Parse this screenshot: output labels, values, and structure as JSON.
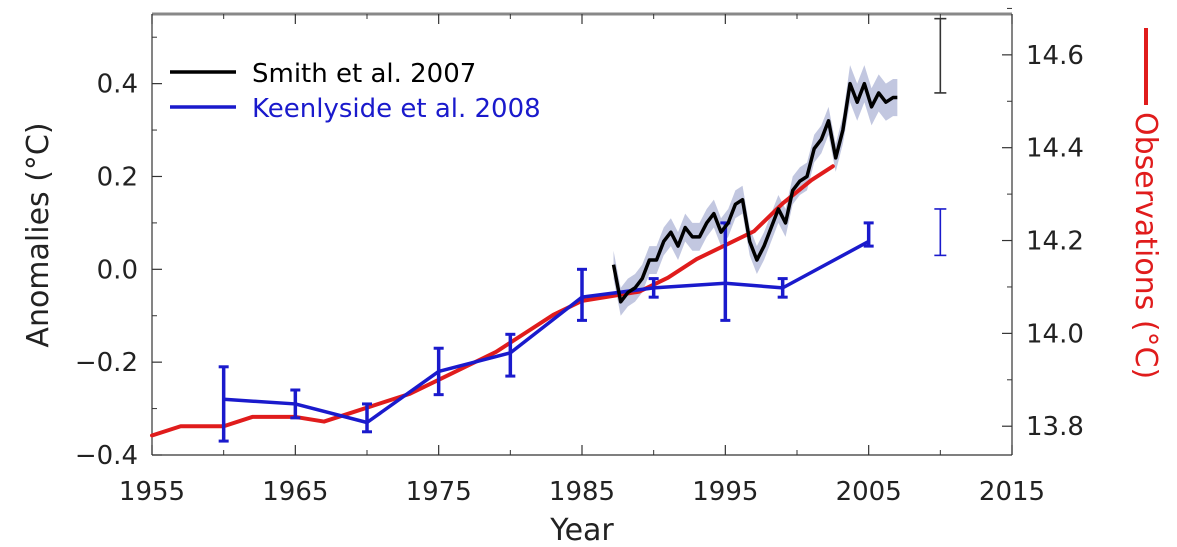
{
  "chart_data": {
    "type": "line",
    "xlabel": "Year",
    "ylabel": "Anomalies (°C)",
    "y2label": "Observations (°C)",
    "xlim": [
      1955,
      2015
    ],
    "ylim": [
      -0.4,
      0.55
    ],
    "y2lim": [
      13.738,
      14.688
    ],
    "x_ticks": [
      1955,
      1965,
      1975,
      1985,
      1995,
      2005,
      2015
    ],
    "y_ticks": [
      -0.4,
      -0.2,
      0.0,
      0.2,
      0.4
    ],
    "y_tick_labels": [
      "−0.4",
      "−0.2",
      "0.0",
      "0.2",
      "0.4"
    ],
    "y2_ticks": [
      13.8,
      14.0,
      14.2,
      14.4,
      14.6
    ],
    "y2_tick_labels": [
      "13.8",
      "14.0",
      "14.2",
      "14.4",
      "14.6"
    ],
    "grid": false,
    "legend_position": "top-left",
    "colors": {
      "smith": "#000000",
      "smith_band": "#aeb4d6",
      "keenlyside": "#1a1acc",
      "observations": "#e01c1c",
      "axis": "#333333"
    },
    "series": [
      {
        "name": "Smith et al. 2007",
        "axis": "left",
        "x": [
          1987.2,
          1987.7,
          1988.2,
          1988.7,
          1989.2,
          1989.7,
          1990.2,
          1990.7,
          1991.2,
          1991.7,
          1992.2,
          1992.7,
          1993.2,
          1993.7,
          1994.2,
          1994.7,
          1995.2,
          1995.7,
          1996.2,
          1996.7,
          1997.2,
          1997.7,
          1998.2,
          1998.7,
          1999.2,
          1999.7,
          2000.2,
          2000.7,
          2001.2,
          2001.7,
          2002.2,
          2002.7,
          2003.2,
          2003.7,
          2004.2,
          2004.7,
          2005.2,
          2005.7,
          2006.2,
          2006.7,
          2007.0
        ],
        "y": [
          0.01,
          -0.07,
          -0.05,
          -0.04,
          -0.02,
          0.02,
          0.02,
          0.06,
          0.08,
          0.05,
          0.09,
          0.07,
          0.07,
          0.1,
          0.12,
          0.08,
          0.1,
          0.14,
          0.15,
          0.06,
          0.02,
          0.05,
          0.09,
          0.13,
          0.1,
          0.17,
          0.19,
          0.2,
          0.26,
          0.28,
          0.32,
          0.24,
          0.3,
          0.4,
          0.36,
          0.4,
          0.35,
          0.38,
          0.36,
          0.37,
          0.37
        ],
        "uncertainty": [
          0.03,
          0.03,
          0.03,
          0.03,
          0.03,
          0.03,
          0.03,
          0.03,
          0.03,
          0.03,
          0.03,
          0.03,
          0.03,
          0.03,
          0.03,
          0.03,
          0.03,
          0.03,
          0.03,
          0.03,
          0.03,
          0.03,
          0.03,
          0.03,
          0.03,
          0.03,
          0.03,
          0.03,
          0.03,
          0.03,
          0.03,
          0.03,
          0.03,
          0.04,
          0.04,
          0.04,
          0.04,
          0.04,
          0.04,
          0.04,
          0.04
        ]
      },
      {
        "name": "Keenlyside et al. 2008",
        "axis": "left",
        "x": [
          1960,
          1965,
          1970,
          1975,
          1980,
          1985,
          1990,
          1995,
          1999,
          2005
        ],
        "y": [
          -0.28,
          -0.29,
          -0.33,
          -0.22,
          -0.18,
          -0.06,
          -0.04,
          -0.03,
          -0.04,
          0.06
        ],
        "err_low": [
          -0.37,
          -0.32,
          -0.35,
          -0.27,
          -0.23,
          -0.11,
          -0.06,
          -0.11,
          -0.06,
          0.05
        ],
        "err_high": [
          -0.21,
          -0.26,
          -0.29,
          -0.17,
          -0.14,
          0.0,
          -0.02,
          0.1,
          -0.02,
          0.1
        ]
      },
      {
        "name": "Observations",
        "axis": "right",
        "x": [
          1955,
          1957,
          1958,
          1960,
          1962,
          1965,
          1967,
          1969,
          1971,
          1973,
          1975,
          1977,
          1979,
          1981,
          1983,
          1985,
          1987,
          1989,
          1991,
          1993,
          1995,
          1997,
          1999,
          2001,
          2002.5
        ],
        "y": [
          13.78,
          13.8,
          13.8,
          13.8,
          13.82,
          13.82,
          13.81,
          13.83,
          13.85,
          13.87,
          13.9,
          13.93,
          13.96,
          14.0,
          14.04,
          14.07,
          14.08,
          14.09,
          14.12,
          14.16,
          14.19,
          14.22,
          14.28,
          14.33,
          14.36
        ]
      }
    ],
    "error_bars_2010": [
      {
        "series": "Smith et al. 2007",
        "x": 2010,
        "low": 0.38,
        "high": 0.54
      },
      {
        "series": "Keenlyside et al. 2008",
        "x": 2010,
        "low": 0.03,
        "high": 0.13
      }
    ]
  }
}
